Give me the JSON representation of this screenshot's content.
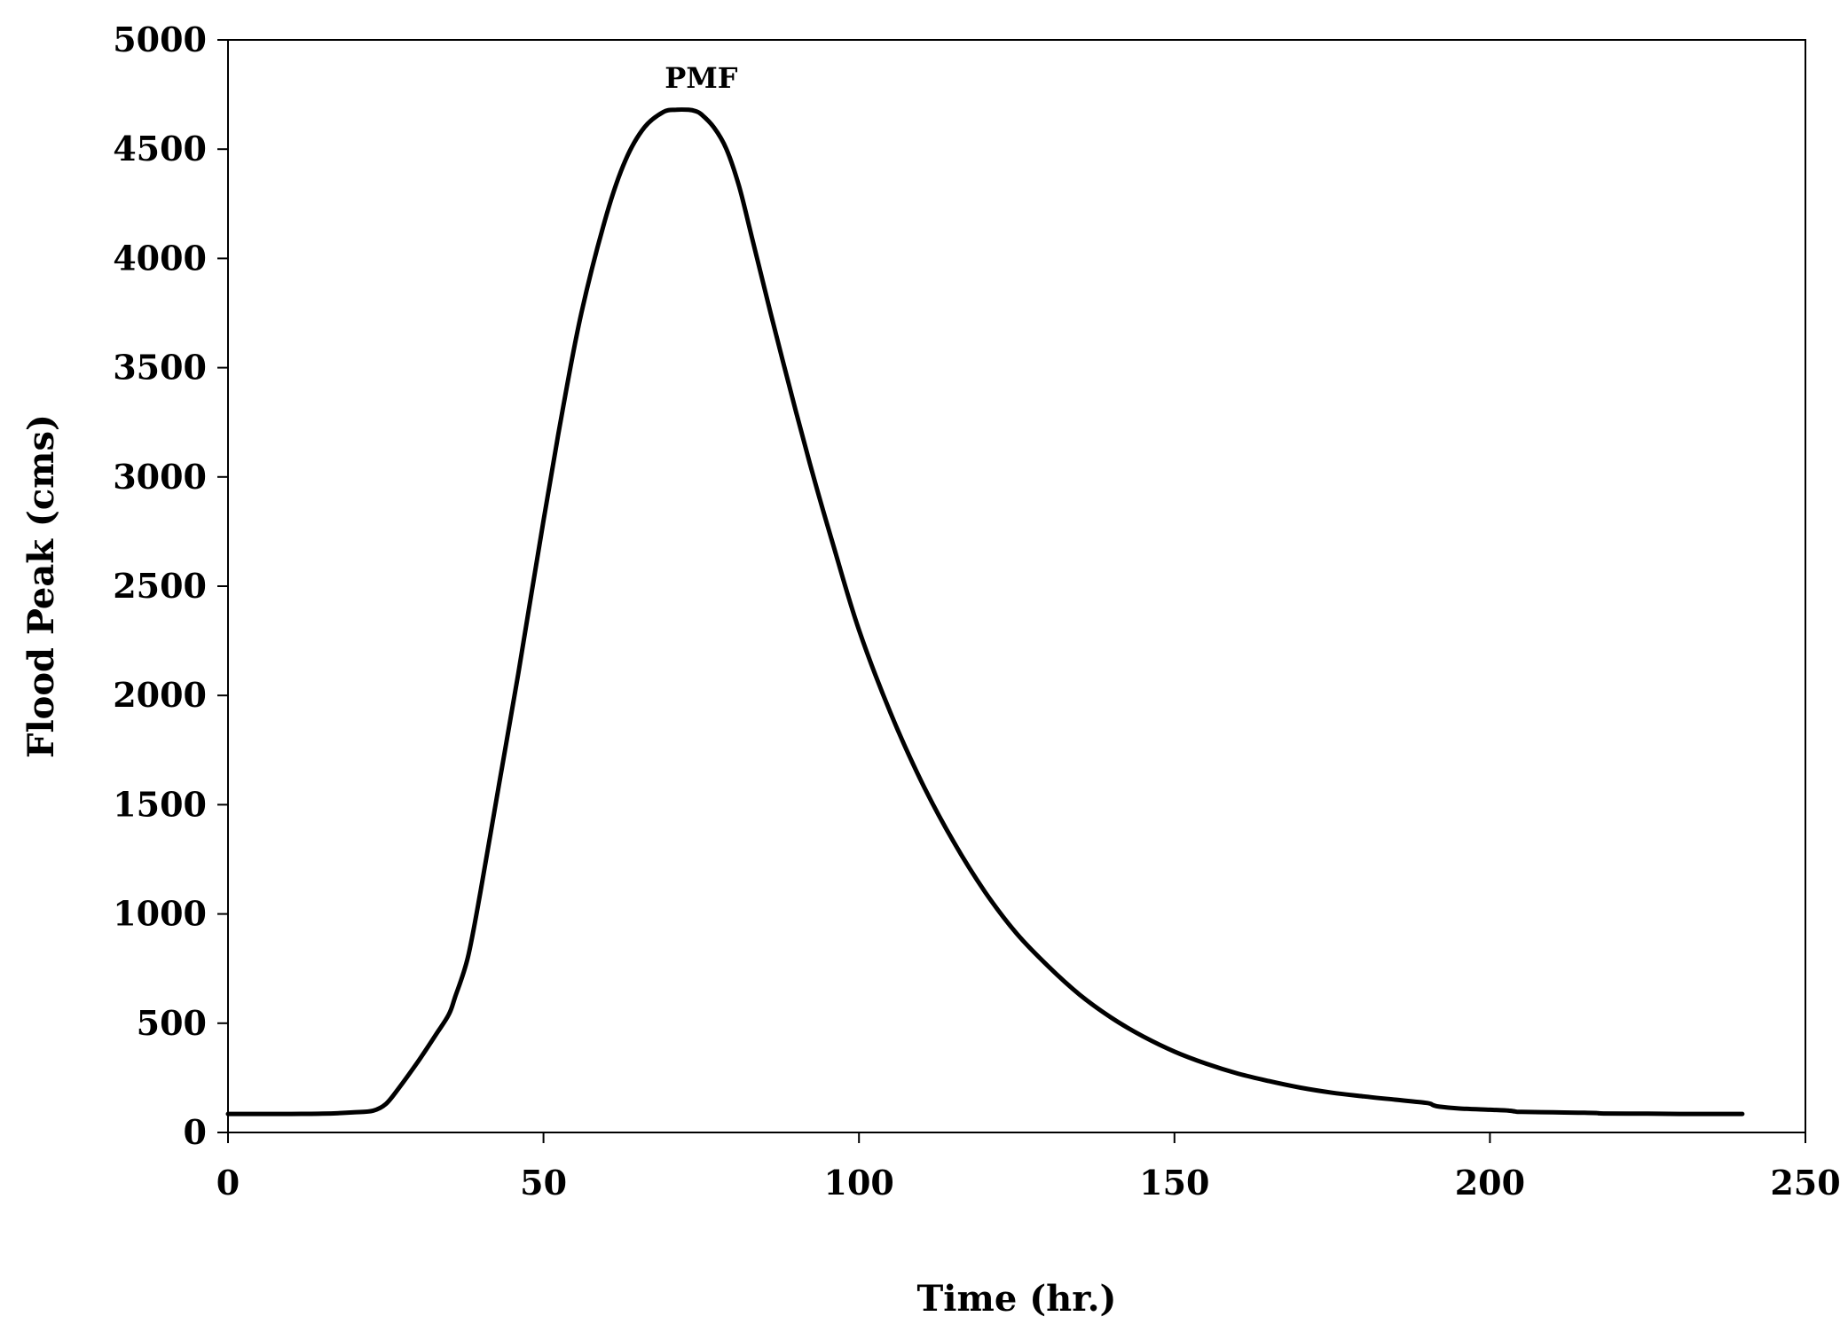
{
  "chart_data": {
    "type": "line",
    "title": "",
    "xlabel": "Time (hr.)",
    "ylabel": "Flood Peak (cms)",
    "xlim": [
      0,
      250
    ],
    "ylim": [
      0,
      5000
    ],
    "xticks": [
      0,
      50,
      100,
      150,
      200,
      250
    ],
    "yticks": [
      0,
      500,
      1000,
      1500,
      2000,
      2500,
      3000,
      3500,
      4000,
      4500,
      5000
    ],
    "grid": false,
    "legend": "none",
    "line_color": "#000000",
    "annotations": [
      {
        "text": "PMF",
        "x": 75,
        "y": 4780
      }
    ],
    "series": [
      {
        "x": [
          0,
          5,
          10,
          15,
          20,
          23,
          25,
          27,
          30,
          33,
          35,
          36,
          38,
          40,
          43,
          46,
          50,
          53,
          56,
          60,
          63,
          66,
          69,
          71,
          73,
          74,
          75,
          77,
          79,
          81,
          83,
          86,
          90,
          93,
          96,
          100,
          105,
          110,
          115,
          120,
          125,
          130,
          135,
          140,
          145,
          150,
          155,
          160,
          165,
          170,
          175,
          180,
          185,
          190,
          191,
          192,
          195,
          200,
          203,
          204,
          205,
          210,
          215,
          217,
          218,
          225,
          230,
          235,
          240
        ],
        "y": [
          85,
          85,
          85,
          86,
          92,
          100,
          130,
          200,
          320,
          450,
          540,
          620,
          800,
          1100,
          1600,
          2100,
          2800,
          3300,
          3750,
          4200,
          4450,
          4600,
          4670,
          4680,
          4680,
          4675,
          4660,
          4600,
          4500,
          4330,
          4100,
          3750,
          3300,
          2980,
          2680,
          2300,
          1920,
          1600,
          1330,
          1100,
          910,
          760,
          630,
          525,
          440,
          370,
          315,
          270,
          235,
          205,
          182,
          165,
          150,
          135,
          125,
          118,
          110,
          104,
          100,
          96,
          94,
          92,
          90,
          89,
          87,
          86,
          85,
          85,
          85
        ]
      }
    ]
  }
}
